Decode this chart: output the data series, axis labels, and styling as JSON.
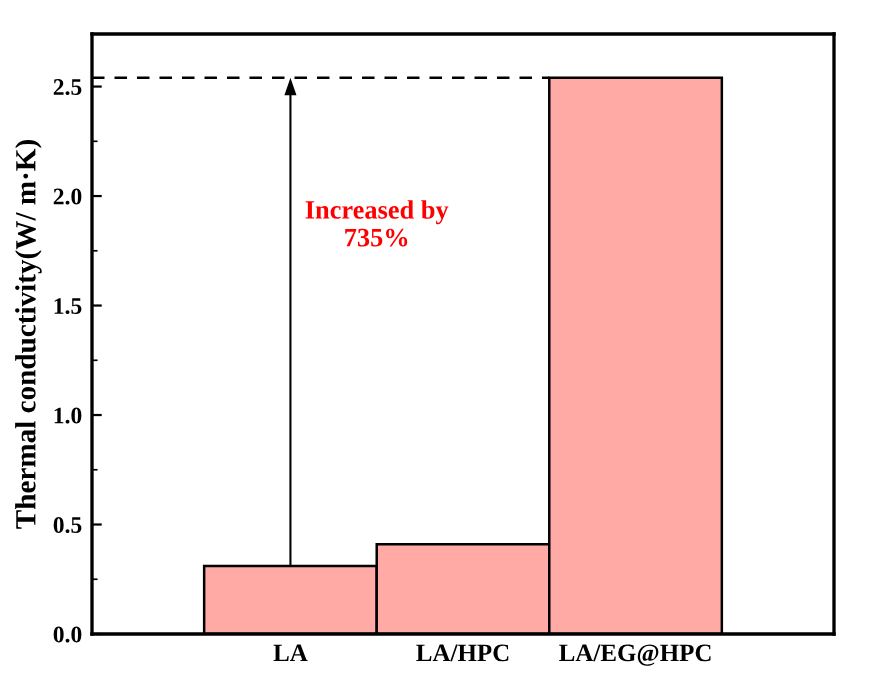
{
  "chart_data": {
    "type": "bar",
    "ylabel": "Thermal conductivity(W/ m·K)",
    "categories": [
      "LA",
      "LA/HPC",
      "LA/EG@HPC"
    ],
    "values": [
      0.31,
      0.41,
      2.54
    ],
    "color": "#ffaaa5",
    "ylim": [
      0,
      2.74
    ],
    "yticks": [
      {
        "value": 0,
        "label": "0.0"
      },
      0.5,
      {
        "value": 1,
        "label": "1.0"
      },
      1.5,
      {
        "value": 2,
        "label": "2.0"
      },
      2.5
    ],
    "ref_lines": [
      {
        "axis": "y",
        "value": 2.54,
        "color": "#000000",
        "line_style": "dashed"
      }
    ],
    "annotations": [
      "Increased by\n735%"
    ],
    "grid": false,
    "legend": false
  }
}
